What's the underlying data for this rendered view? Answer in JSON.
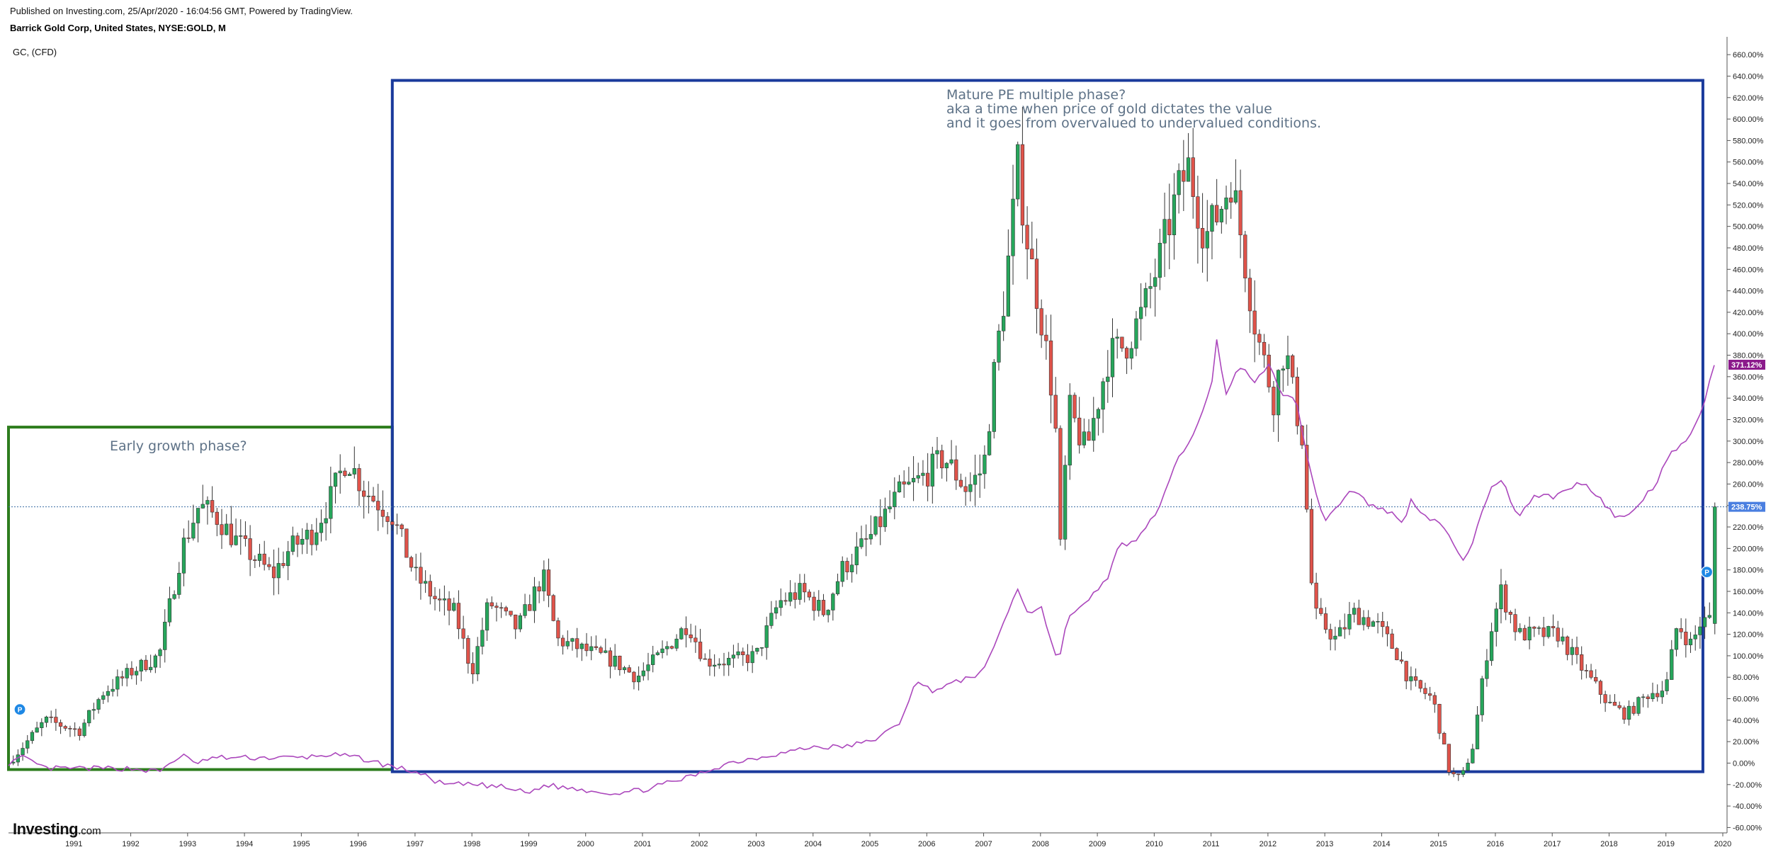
{
  "header": {
    "published": "Published on Investing.com, 25/Apr/2020 - 16:04:56 GMT, Powered by TradingView.",
    "symbol": "Barrick Gold Corp, United States, NYSE:GOLD, M",
    "series_label": "GC,  (CFD)"
  },
  "logo": {
    "main": "Investing",
    "suffix": ".com"
  },
  "annotations": {
    "early": "Early growth phase?",
    "mature_1": "Mature PE multiple phase?",
    "mature_2": "aka a time when price of gold dictates the value",
    "mature_3": "and it goes from overvalued to undervalued conditions."
  },
  "colors": {
    "up": "#26a65b",
    "down": "#e0534a",
    "comparison_line": "#ab47bc",
    "early_box": "#2e7d1e",
    "mature_box": "#1a3a9c",
    "last_price_badge": "#4a7fe0",
    "comparison_badge": "#8b1a8b",
    "dotted_line": "#3a6ea5"
  },
  "chart_data": {
    "type": "candlestick",
    "title": "Barrick Gold Corp, United States, NYSE:GOLD, M",
    "y_unit": "% change",
    "ylim": [
      -65,
      670
    ],
    "y_ticks": [
      -60,
      -40,
      -20,
      0,
      20,
      40,
      60,
      80,
      100,
      120,
      140,
      160,
      180,
      200,
      220,
      240,
      260,
      280,
      300,
      320,
      340,
      360,
      380,
      400,
      420,
      440,
      460,
      480,
      500,
      520,
      540,
      560,
      580,
      600,
      620,
      640,
      660
    ],
    "x_ticks": [
      "1991",
      "1992",
      "1993",
      "1994",
      "1995",
      "1996",
      "1997",
      "1998",
      "1999",
      "2000",
      "2001",
      "2002",
      "2003",
      "2004",
      "2005",
      "2006",
      "2007",
      "2008",
      "2009",
      "2010",
      "2011",
      "2012",
      "2013",
      "2014",
      "2015",
      "2016",
      "2017",
      "2018",
      "2019",
      "2020"
    ],
    "x_range": [
      1990.35,
      2020.45
    ],
    "last_value_label": "238.75%",
    "last_value": 238.75,
    "comparison_label": "371.12%",
    "comparison_last": 371.12,
    "gold_anchors": [
      [
        1990.35,
        0
      ],
      [
        1991.0,
        40
      ],
      [
        1991.6,
        30
      ],
      [
        1992.0,
        65
      ],
      [
        1992.5,
        85
      ],
      [
        1993.0,
        100
      ],
      [
        1993.4,
        200
      ],
      [
        1993.7,
        240
      ],
      [
        1994.0,
        230
      ],
      [
        1994.3,
        210
      ],
      [
        1994.7,
        190
      ],
      [
        1995.0,
        175
      ],
      [
        1995.3,
        200
      ],
      [
        1995.7,
        215
      ],
      [
        1996.0,
        245
      ],
      [
        1996.3,
        285
      ],
      [
        1996.6,
        255
      ],
      [
        1996.9,
        240
      ],
      [
        1997.1,
        230
      ],
      [
        1997.5,
        175
      ],
      [
        1997.9,
        150
      ],
      [
        1998.2,
        140
      ],
      [
        1998.5,
        85
      ],
      [
        1998.8,
        150
      ],
      [
        1999.3,
        125
      ],
      [
        1999.75,
        175
      ],
      [
        2000.0,
        115
      ],
      [
        2000.5,
        105
      ],
      [
        2001.0,
        95
      ],
      [
        2001.4,
        80
      ],
      [
        2001.8,
        100
      ],
      [
        2002.3,
        130
      ],
      [
        2002.6,
        95
      ],
      [
        2003.0,
        95
      ],
      [
        2003.5,
        100
      ],
      [
        2003.9,
        150
      ],
      [
        2004.3,
        160
      ],
      [
        2004.7,
        140
      ],
      [
        2005.0,
        180
      ],
      [
        2005.5,
        210
      ],
      [
        2006.0,
        250
      ],
      [
        2006.4,
        265
      ],
      [
        2006.8,
        285
      ],
      [
        2007.2,
        255
      ],
      [
        2007.5,
        275
      ],
      [
        2007.7,
        370
      ],
      [
        2007.9,
        450
      ],
      [
        2008.1,
        555
      ],
      [
        2008.3,
        475
      ],
      [
        2008.5,
        420
      ],
      [
        2008.75,
        330
      ],
      [
        2008.85,
        200
      ],
      [
        2009.0,
        330
      ],
      [
        2009.3,
        290
      ],
      [
        2009.7,
        380
      ],
      [
        2010.0,
        390
      ],
      [
        2010.3,
        420
      ],
      [
        2010.6,
        470
      ],
      [
        2010.9,
        530
      ],
      [
        2011.1,
        555
      ],
      [
        2011.4,
        490
      ],
      [
        2011.65,
        515
      ],
      [
        2011.85,
        545
      ],
      [
        2012.0,
        500
      ],
      [
        2012.3,
        400
      ],
      [
        2012.6,
        340
      ],
      [
        2012.8,
        390
      ],
      [
        2012.95,
        340
      ],
      [
        2013.1,
        305
      ],
      [
        2013.3,
        140
      ],
      [
        2013.7,
        115
      ],
      [
        2014.0,
        140
      ],
      [
        2014.4,
        130
      ],
      [
        2014.8,
        100
      ],
      [
        2015.0,
        75
      ],
      [
        2015.4,
        60
      ],
      [
        2015.7,
        -10
      ],
      [
        2015.9,
        -15
      ],
      [
        2016.1,
        15
      ],
      [
        2016.4,
        120
      ],
      [
        2016.6,
        160
      ],
      [
        2016.9,
        120
      ],
      [
        2017.2,
        120
      ],
      [
        2017.6,
        120
      ],
      [
        2018.0,
        90
      ],
      [
        2018.5,
        55
      ],
      [
        2018.8,
        45
      ],
      [
        2019.2,
        65
      ],
      [
        2019.5,
        70
      ],
      [
        2019.7,
        130
      ],
      [
        2019.95,
        110
      ],
      [
        2020.1,
        130
      ],
      [
        2020.3,
        135
      ],
      [
        2020.36,
        238.75
      ]
    ],
    "gc_anchors": [
      [
        1990.35,
        0
      ],
      [
        1990.6,
        5
      ],
      [
        1991.0,
        -5
      ],
      [
        1991.5,
        -5
      ],
      [
        1992.0,
        -5
      ],
      [
        1992.5,
        -5
      ],
      [
        1993.0,
        -8
      ],
      [
        1993.4,
        8
      ],
      [
        1993.6,
        0
      ],
      [
        1994.0,
        5
      ],
      [
        1994.5,
        5
      ],
      [
        1995.0,
        5
      ],
      [
        1995.5,
        5
      ],
      [
        1996.0,
        8
      ],
      [
        1996.5,
        5
      ],
      [
        1997.0,
        -2
      ],
      [
        1997.5,
        -8
      ],
      [
        1998.0,
        -20
      ],
      [
        1998.5,
        -20
      ],
      [
        1999.0,
        -22
      ],
      [
        1999.5,
        -28
      ],
      [
        1999.8,
        -20
      ],
      [
        2000.0,
        -22
      ],
      [
        2000.5,
        -25
      ],
      [
        2001.0,
        -28
      ],
      [
        2001.5,
        -25
      ],
      [
        2002.0,
        -18
      ],
      [
        2002.5,
        -10
      ],
      [
        2003.0,
        0
      ],
      [
        2003.5,
        5
      ],
      [
        2004.0,
        10
      ],
      [
        2004.5,
        15
      ],
      [
        2005.0,
        15
      ],
      [
        2005.5,
        20
      ],
      [
        2006.0,
        35
      ],
      [
        2006.3,
        75
      ],
      [
        2006.6,
        68
      ],
      [
        2007.0,
        75
      ],
      [
        2007.5,
        85
      ],
      [
        2007.8,
        125
      ],
      [
        2008.1,
        162
      ],
      [
        2008.3,
        138
      ],
      [
        2008.5,
        148
      ],
      [
        2008.8,
        93
      ],
      [
        2009.0,
        138
      ],
      [
        2009.3,
        148
      ],
      [
        2009.7,
        175
      ],
      [
        2009.9,
        205
      ],
      [
        2010.0,
        200
      ],
      [
        2010.3,
        215
      ],
      [
        2010.6,
        240
      ],
      [
        2010.9,
        280
      ],
      [
        2011.2,
        310
      ],
      [
        2011.5,
        350
      ],
      [
        2011.6,
        395
      ],
      [
        2011.75,
        340
      ],
      [
        2012.0,
        370
      ],
      [
        2012.3,
        355
      ],
      [
        2012.5,
        372
      ],
      [
        2012.75,
        345
      ],
      [
        2013.0,
        340
      ],
      [
        2013.2,
        280
      ],
      [
        2013.5,
        225
      ],
      [
        2013.8,
        245
      ],
      [
        2014.0,
        255
      ],
      [
        2014.3,
        240
      ],
      [
        2014.6,
        235
      ],
      [
        2014.9,
        225
      ],
      [
        2015.0,
        245
      ],
      [
        2015.3,
        230
      ],
      [
        2015.6,
        220
      ],
      [
        2015.9,
        188
      ],
      [
        2016.1,
        205
      ],
      [
        2016.4,
        255
      ],
      [
        2016.6,
        265
      ],
      [
        2016.9,
        230
      ],
      [
        2017.2,
        250
      ],
      [
        2017.5,
        248
      ],
      [
        2017.8,
        255
      ],
      [
        2018.0,
        262
      ],
      [
        2018.3,
        250
      ],
      [
        2018.6,
        230
      ],
      [
        2018.8,
        228
      ],
      [
        2019.0,
        240
      ],
      [
        2019.3,
        258
      ],
      [
        2019.6,
        290
      ],
      [
        2019.9,
        300
      ],
      [
        2020.1,
        325
      ],
      [
        2020.36,
        371.12
      ]
    ]
  }
}
